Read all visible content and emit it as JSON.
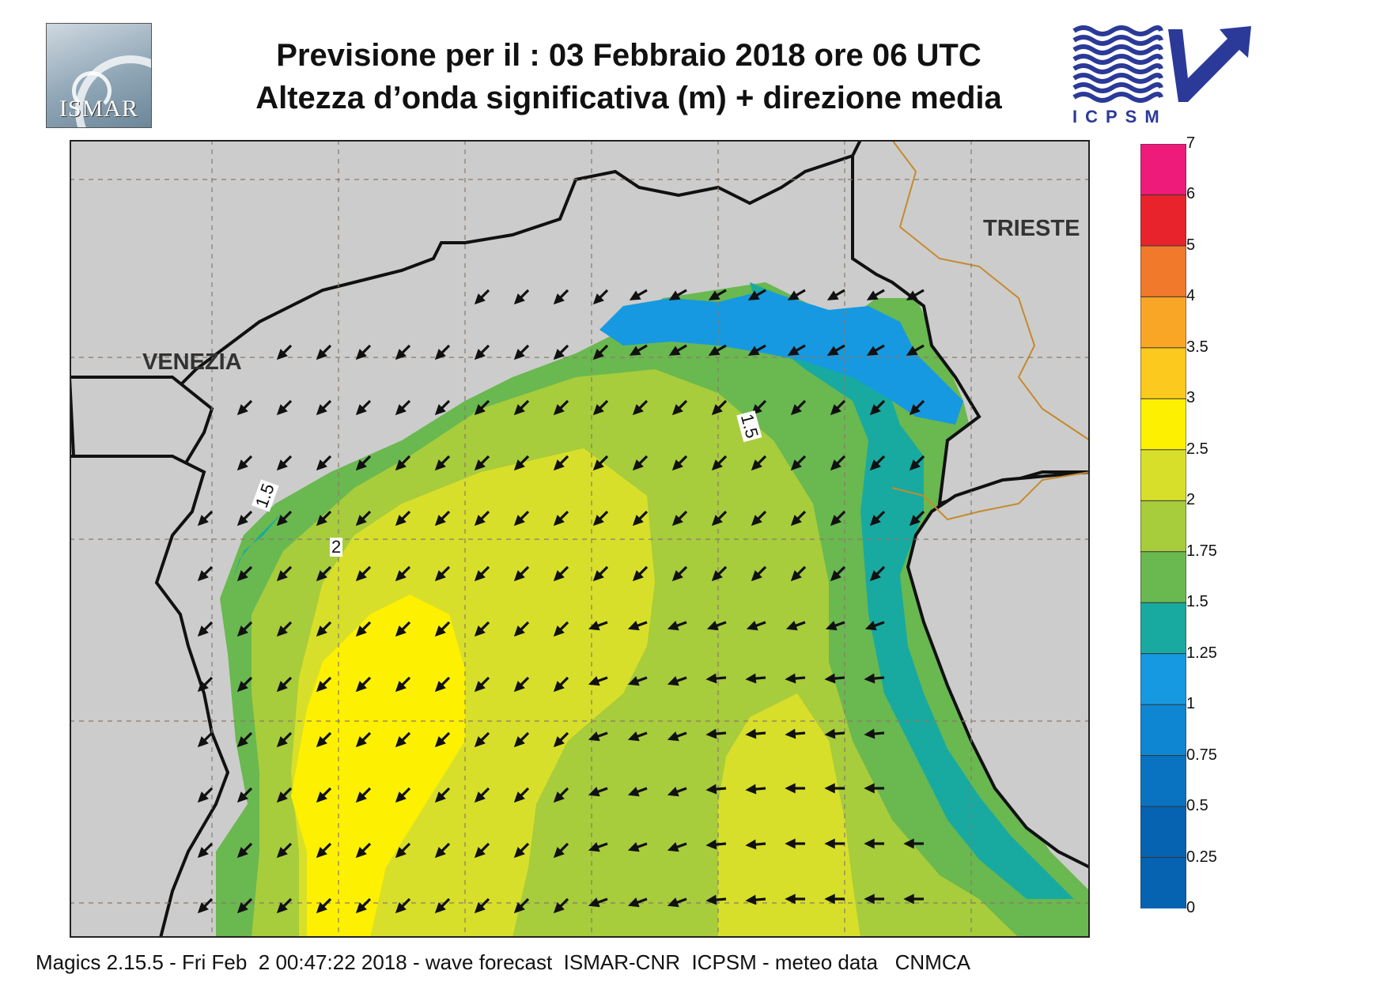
{
  "header": {
    "title_line1": "Previsione per il  :  03  Febbraio 2018   ore 06 UTC",
    "title_line2": "Altezza d’onda significativa (m) + direzione media",
    "logo_left_text": "ISMAR",
    "logo_right_text": "ICPSM"
  },
  "map": {
    "place_labels": [
      "VENEZIA",
      "TRIESTE"
    ],
    "contour_labels": [
      "1.5",
      "2",
      "1.5"
    ],
    "colors": {
      "land": "#cccccc",
      "coast": "#111111",
      "border": "#c58a2e",
      "grid": "#8a7a6a"
    },
    "arrow_direction": "mostly southwest in the west, west in the south-east",
    "icons": [
      "ismar-logo-icon",
      "icpsm-logo-icon",
      "wave-direction-arrow-icon"
    ]
  },
  "colorbar": {
    "ticks": [
      "7",
      "6",
      "5",
      "4",
      "3.5",
      "3",
      "2.5",
      "2",
      "1.75",
      "1.5",
      "1.25",
      "1",
      "0.75",
      "0.5",
      "0.25",
      "0"
    ],
    "colors": [
      "#ee1b7a",
      "#e8232c",
      "#f0792b",
      "#f9a626",
      "#fcc91f",
      "#fdf001",
      "#d8df2a",
      "#a7cc3c",
      "#6ab850",
      "#18aaa0",
      "#1699e0",
      "#0f86d1",
      "#0a73c1",
      "#0663b2"
    ]
  },
  "footer": {
    "text": "Magics 2.15.5 - Fri Feb  2 00:47:22 2018 - wave forecast  ISMAR-CNR  ICPSM - meteo data   CNMCA"
  }
}
